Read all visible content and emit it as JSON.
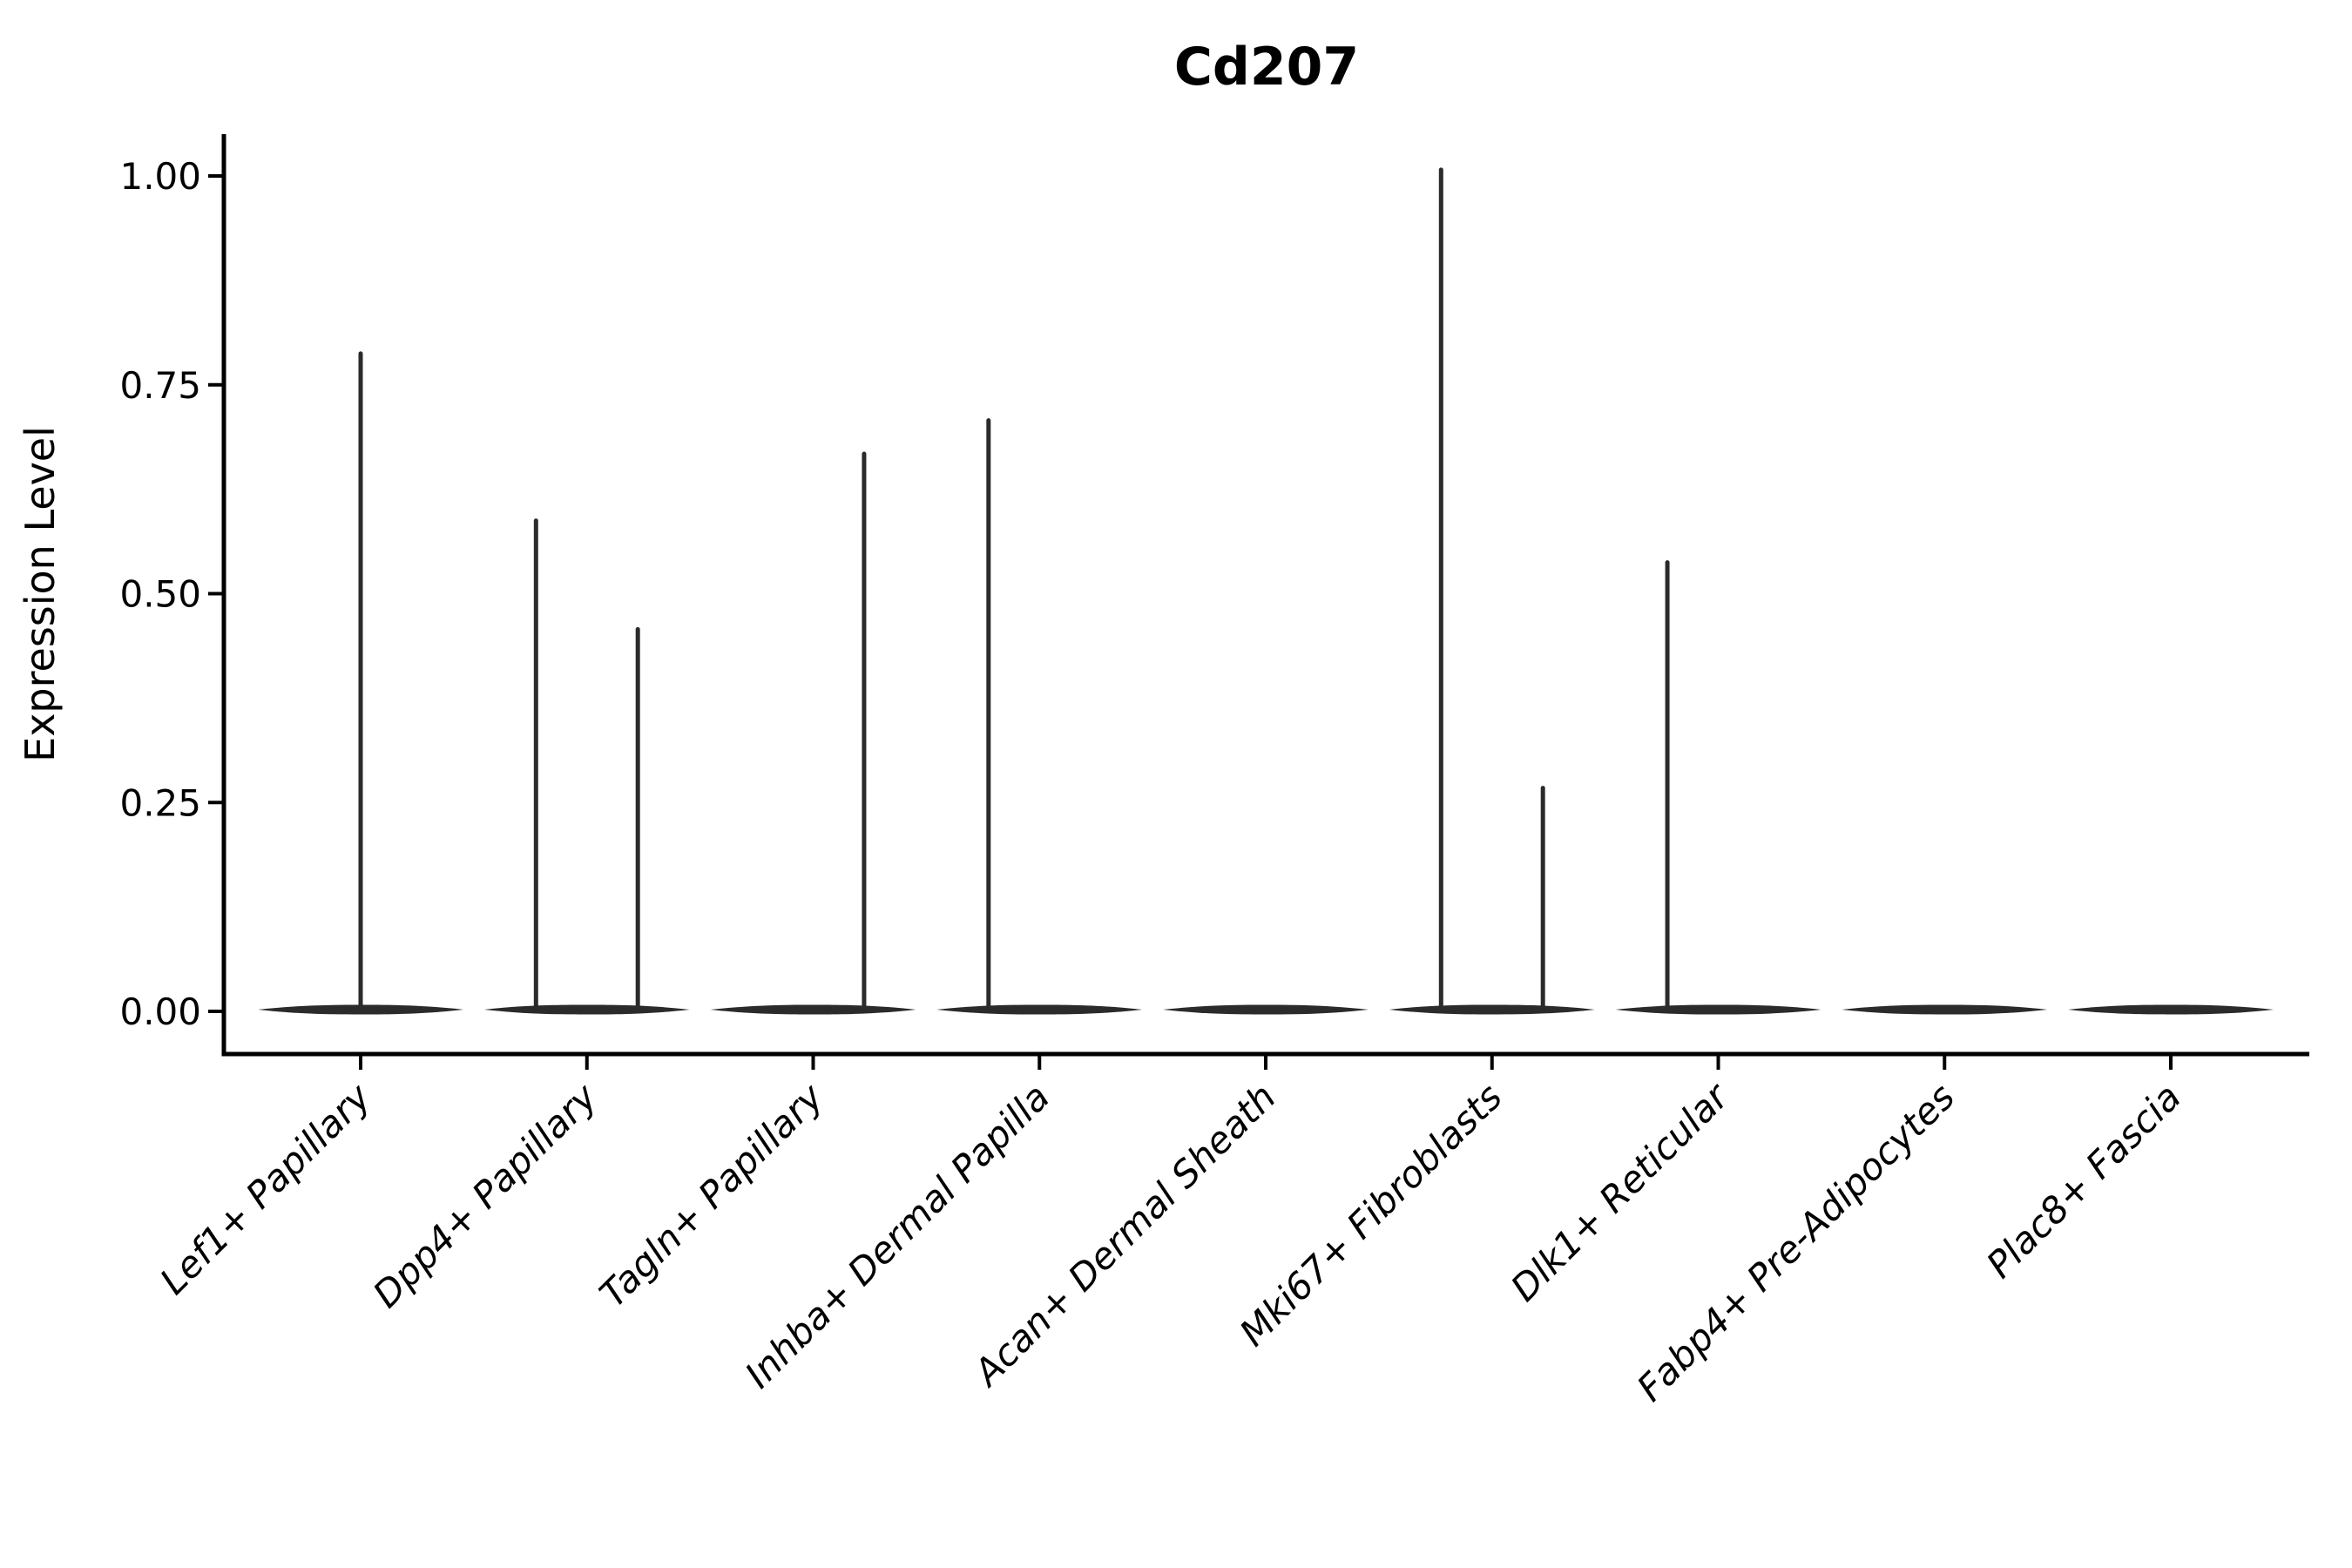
{
  "title": "Cd207",
  "axes": {
    "y_label": "Expression Level",
    "y_ticks": [
      {
        "label": "1.00",
        "value": 1.0
      },
      {
        "label": "0.75",
        "value": 0.75
      },
      {
        "label": "0.50",
        "value": 0.5
      },
      {
        "label": "0.25",
        "value": 0.25
      },
      {
        "label": "0.00",
        "value": 0.0
      }
    ],
    "x_categories": [
      "Lef1+ Papillary",
      "Dpp4+ Papillary",
      "Tagln+ Papillary",
      "Inhba+ Dermal Papilla",
      "Acan+ Dermal Sheath",
      "Mki67+ Fibroblasts",
      "Dlk1+ Reticular",
      "Fabp4+ Pre-Adipocytes",
      "Plac8+ Fascia"
    ]
  },
  "colors": {
    "violin": "#2b2b2b",
    "axis": "#000000",
    "text": "#000000",
    "background": "#ffffff"
  },
  "chart_data": {
    "type": "violin",
    "title": "Cd207",
    "xlabel": "",
    "ylabel": "Expression Level",
    "ylim": [
      -0.05,
      1.06
    ],
    "y_tick_values": [
      0,
      0.25,
      0.5,
      0.75,
      1.0
    ],
    "grid": false,
    "legend": false,
    "categories": [
      "Lef1+ Papillary",
      "Dpp4+ Papillary",
      "Tagln+ Papillary",
      "Inhba+ Dermal Papilla",
      "Acan+ Dermal Sheath",
      "Mki67+ Fibroblasts",
      "Dlk1+ Reticular",
      "Fabp4+ Pre-Adipocytes",
      "Plac8+ Fascia"
    ],
    "violin_width_frac": 0.9,
    "series": [
      {
        "name": "Lef1+ Papillary",
        "baseline_value": 0,
        "spikes": [
          {
            "offset_frac": 0,
            "max": 0.79
          }
        ]
      },
      {
        "name": "Dpp4+ Papillary",
        "baseline_value": 0,
        "spikes": [
          {
            "offset_frac": -0.225,
            "max": 0.59
          },
          {
            "offset_frac": 0.225,
            "max": 0.46
          }
        ]
      },
      {
        "name": "Tagln+ Papillary",
        "baseline_value": 0,
        "spikes": [
          {
            "offset_frac": 0.225,
            "max": 0.67
          }
        ]
      },
      {
        "name": "Inhba+ Dermal Papilla",
        "baseline_value": 0,
        "spikes": [
          {
            "offset_frac": -0.225,
            "max": 0.71
          }
        ]
      },
      {
        "name": "Acan+ Dermal Sheath",
        "baseline_value": 0,
        "spikes": []
      },
      {
        "name": "Mki67+ Fibroblasts",
        "baseline_value": 0,
        "spikes": [
          {
            "offset_frac": -0.225,
            "max": 1.01
          },
          {
            "offset_frac": 0.225,
            "max": 0.27
          }
        ]
      },
      {
        "name": "Dlk1+ Reticular",
        "baseline_value": 0,
        "spikes": [
          {
            "offset_frac": -0.225,
            "max": 0.54
          }
        ]
      },
      {
        "name": "Fabp4+ Pre-Adipocytes",
        "baseline_value": 0,
        "spikes": []
      },
      {
        "name": "Plac8+ Fascia",
        "baseline_value": 0,
        "spikes": []
      }
    ]
  }
}
